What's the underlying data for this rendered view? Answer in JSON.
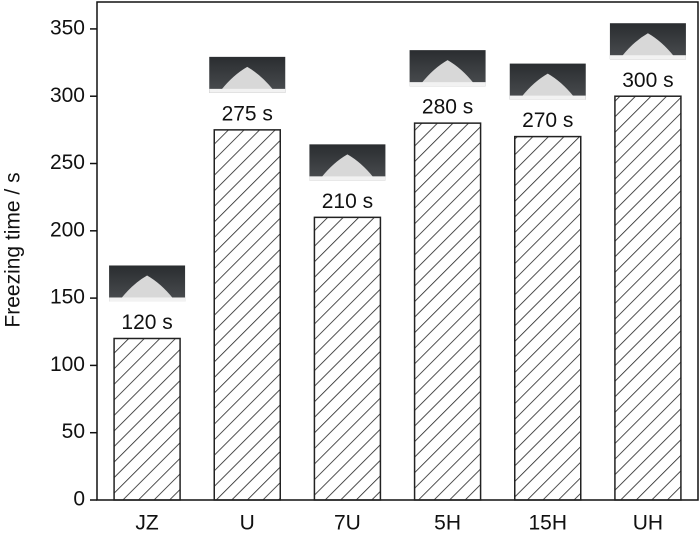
{
  "chart_data": {
    "type": "bar",
    "y_label": "Freezing time / s",
    "categories": [
      "JZ",
      "U",
      "7U",
      "5H",
      "15H",
      "UH"
    ],
    "values": [
      120,
      275,
      210,
      280,
      270,
      300
    ],
    "value_labels": [
      "120 s",
      "275 s",
      "210 s",
      "280 s",
      "270 s",
      "300 s"
    ],
    "color": "#222222",
    "ylim": [
      0,
      370
    ],
    "yticks": [
      0,
      50,
      100,
      150,
      200,
      250,
      300,
      350
    ]
  }
}
